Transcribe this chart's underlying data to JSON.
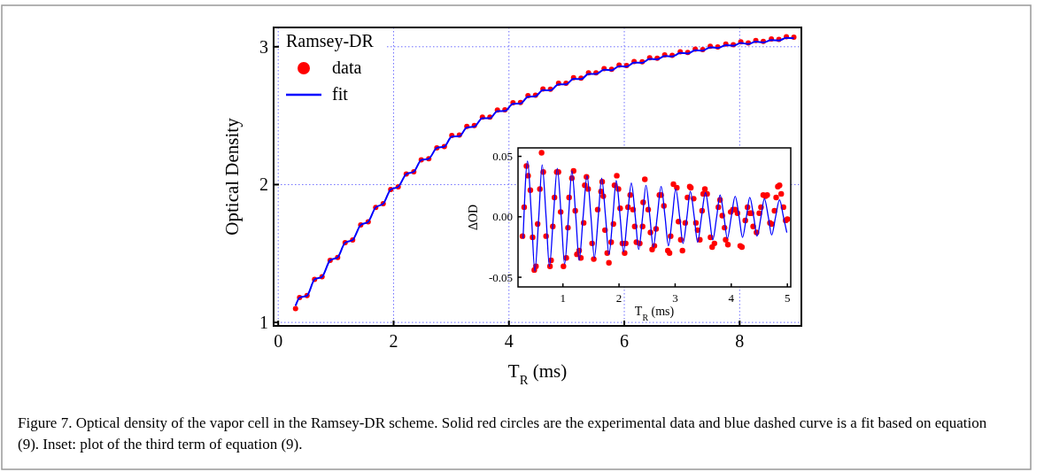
{
  "chart_data": [
    {
      "type": "scatter",
      "xlabel": "T$_{R}$ (ms)",
      "ylabel": "Optical Density",
      "legend_title": "Ramsey-DR",
      "legend": "top left",
      "grid": true,
      "xlim": [
        -0.08,
        9.07
      ],
      "ylim": [
        0.975,
        3.14
      ],
      "xticks": [
        0,
        2,
        4,
        6,
        8
      ],
      "yticks": [
        1,
        2,
        3
      ],
      "annotations": [
        "Figure 7. Optical density of the vapor cell in the Ramsey-DR scheme. Solid red circles are the experimental data and blue dashed curve is a fit based on equation (9). Inset: plot of the third term of equation (9)."
      ],
      "series": [
        {
          "name": "data",
          "type": "scatter",
          "marker": "circle",
          "color": "#ff0000",
          "x": [
            0.3,
            0.37,
            0.5,
            0.63,
            0.76,
            0.9,
            1.03,
            1.16,
            1.29,
            1.43,
            1.56,
            1.69,
            1.82,
            1.95,
            2.08,
            2.22,
            2.35,
            2.48,
            2.61,
            2.75,
            2.88,
            3.01,
            3.14,
            3.27,
            3.4,
            3.54,
            3.67,
            3.8,
            3.93,
            4.07,
            4.2,
            4.33,
            4.46,
            4.59,
            4.72,
            4.86,
            4.99,
            5.12,
            5.25,
            5.38,
            5.51,
            5.65,
            5.78,
            5.91,
            6.04,
            6.17,
            6.31,
            6.44,
            6.57,
            6.7,
            6.83,
            6.97,
            7.1,
            7.23,
            7.36,
            7.49,
            7.62,
            7.76,
            7.89,
            8.02,
            8.15,
            8.28,
            8.41,
            8.55,
            8.68,
            8.81,
            8.94
          ],
          "values": [
            1.1,
            1.18,
            1.195,
            1.312,
            1.331,
            1.451,
            1.472,
            1.579,
            1.598,
            1.707,
            1.73,
            1.835,
            1.861,
            1.964,
            1.984,
            2.076,
            2.093,
            2.179,
            2.188,
            2.266,
            2.276,
            2.356,
            2.359,
            2.422,
            2.428,
            2.49,
            2.489,
            2.541,
            2.542,
            2.594,
            2.596,
            2.645,
            2.649,
            2.693,
            2.692,
            2.736,
            2.736,
            2.775,
            2.773,
            2.81,
            2.81,
            2.842,
            2.837,
            2.867,
            2.864,
            2.893,
            2.891,
            2.92,
            2.917,
            2.941,
            2.937,
            2.963,
            2.959,
            2.983,
            2.98,
            3.004,
            2.999,
            3.02,
            3.015,
            3.035,
            3.028,
            3.045,
            3.039,
            3.056,
            3.054,
            3.072,
            3.069
          ]
        },
        {
          "name": "fit",
          "type": "line",
          "color": "#0000ff",
          "x": [
            0.3,
            0.37,
            0.5,
            0.63,
            0.76,
            0.9,
            1.03,
            1.16,
            1.29,
            1.43,
            1.56,
            1.69,
            1.82,
            1.95,
            2.08,
            2.22,
            2.35,
            2.48,
            2.61,
            2.75,
            2.88,
            3.01,
            3.14,
            3.27,
            3.4,
            3.54,
            3.67,
            3.8,
            3.93,
            4.07,
            4.2,
            4.33,
            4.46,
            4.59,
            4.72,
            4.86,
            4.99,
            5.12,
            5.25,
            5.38,
            5.51,
            5.65,
            5.78,
            5.91,
            6.04,
            6.17,
            6.31,
            6.44,
            6.57,
            6.7,
            6.83,
            6.97,
            7.1,
            7.23,
            7.36,
            7.49,
            7.62,
            7.76,
            7.89,
            8.02,
            8.15,
            8.28,
            8.41,
            8.55,
            8.68,
            8.81,
            8.94
          ],
          "values": [
            1.12,
            1.18,
            1.195,
            1.312,
            1.331,
            1.451,
            1.472,
            1.579,
            1.598,
            1.707,
            1.73,
            1.835,
            1.861,
            1.964,
            1.984,
            2.076,
            2.093,
            2.179,
            2.188,
            2.266,
            2.276,
            2.348,
            2.351,
            2.414,
            2.42,
            2.482,
            2.481,
            2.533,
            2.534,
            2.586,
            2.588,
            2.637,
            2.641,
            2.685,
            2.684,
            2.728,
            2.728,
            2.767,
            2.765,
            2.802,
            2.802,
            2.834,
            2.829,
            2.859,
            2.856,
            2.885,
            2.883,
            2.912,
            2.909,
            2.933,
            2.929,
            2.955,
            2.951,
            2.975,
            2.972,
            2.996,
            2.991,
            3.012,
            3.007,
            3.027,
            3.02,
            3.037,
            3.031,
            3.048,
            3.046,
            3.064,
            3.061
          ]
        }
      ]
    },
    {
      "type": "scatter",
      "xlabel": "T$_{R}$ (ms)",
      "ylabel": "ΔOD",
      "xlim": [
        0.2,
        5.06
      ],
      "ylim": [
        -0.058,
        0.057
      ],
      "xticks": [
        1,
        2,
        3,
        4,
        5
      ],
      "yticks": [
        {
          "value": -0.05,
          "label": "-0.05"
        },
        {
          "value": 0,
          "label": "0.00"
        },
        {
          "value": 0.05,
          "label": "0.05"
        }
      ],
      "series": [
        {
          "type": "scatter",
          "marker": "circle",
          "color": "#ff0000",
          "x": [
            0.28,
            0.31,
            0.35,
            0.38,
            0.42,
            0.46,
            0.49,
            0.52,
            0.55,
            0.59,
            0.62,
            0.65,
            0.7,
            0.77,
            0.79,
            0.82,
            0.85,
            0.89,
            0.92,
            0.96,
            1.01,
            1.06,
            1.09,
            1.11,
            1.16,
            1.19,
            1.22,
            1.25,
            1.29,
            1.32,
            1.37,
            1.39,
            1.42,
            1.45,
            1.52,
            1.55,
            1.62,
            1.68,
            1.7,
            1.72,
            1.75,
            1.79,
            1.82,
            1.86,
            1.9,
            1.92,
            1.96,
            1.99,
            2.02,
            2.06,
            2.1,
            2.12,
            2.16,
            2.2,
            2.25,
            2.28,
            2.31,
            2.37,
            2.42,
            2.43,
            2.46,
            2.52,
            2.56,
            2.59,
            2.63,
            2.66,
            2.72,
            2.75,
            2.8,
            2.87,
            2.9,
            2.92,
            2.97,
            3.03,
            3.06,
            3.1,
            3.13,
            3.18,
            3.22,
            3.26,
            3.28,
            3.33,
            3.37,
            3.4,
            3.44,
            3.48,
            3.5,
            3.53,
            3.57,
            3.63,
            3.66,
            3.7,
            3.77,
            3.8,
            3.84,
            3.88,
            3.9,
            3.94,
            3.99,
            4.03,
            4.07,
            4.11,
            4.16,
            4.19,
            4.25,
            4.29,
            4.33,
            4.36,
            4.39,
            4.45,
            4.5,
            4.53,
            4.57,
            4.61,
            4.64,
            4.69,
            4.72,
            4.77,
            4.8,
            4.83,
            4.86,
            4.89,
            4.93,
            4.97,
            5.0
          ],
          "values": [
            -0.016,
            0.008,
            0.042,
            0.034,
            0.022,
            -0.017,
            -0.044,
            -0.041,
            -0.006,
            0.023,
            0.053,
            0.037,
            -0.016,
            -0.041,
            -0.036,
            -0.008,
            0.016,
            0.037,
            0.037,
            0.004,
            -0.041,
            -0.034,
            -0.009,
            0.016,
            0.032,
            0.038,
            0.005,
            -0.031,
            -0.028,
            -0.034,
            -0.005,
            0.026,
            0.033,
            0.023,
            -0.022,
            -0.035,
            0.006,
            0.021,
            0.029,
            0.017,
            -0.011,
            -0.03,
            -0.038,
            -0.021,
            -0.006,
            0.026,
            0.034,
            0.023,
            0.007,
            -0.022,
            -0.03,
            -0.022,
            0.008,
            0.018,
            0.006,
            -0.008,
            -0.021,
            -0.022,
            -0.008,
            0.012,
            0.031,
            0.006,
            -0.013,
            -0.027,
            -0.024,
            -0.01,
            0.018,
            0.018,
            0.009,
            -0.028,
            -0.03,
            -0.016,
            0.027,
            0.024,
            -0.004,
            -0.019,
            -0.028,
            -0.005,
            0.016,
            0.025,
            0.024,
            0.015,
            -0.005,
            -0.011,
            -0.019,
            0.005,
            0.019,
            0.023,
            0.019,
            -0.017,
            -0.025,
            -0.022,
            0.008,
            0.014,
            0.001,
            -0.009,
            -0.019,
            -0.023,
            0.004,
            0.006,
            0.006,
            0.003,
            -0.024,
            -0.025,
            -0.003,
            0.008,
            0.003,
            0.003,
            -0.008,
            -0.013,
            0.003,
            0.008,
            0.018,
            0.017,
            0.018,
            -0.005,
            -0.006,
            0.005,
            0.016,
            0.025,
            0.026,
            0.019,
            0.008,
            -0.003,
            -0.002
          ]
        },
        {
          "type": "line",
          "color": "#0000ff",
          "x": [
            0.29,
            0.37,
            0.44,
            0.5,
            0.57,
            0.63,
            0.7,
            0.76,
            0.83,
            0.9,
            0.97,
            1.03,
            1.1,
            1.16,
            1.23,
            1.29,
            1.36,
            1.43,
            1.5,
            1.56,
            1.63,
            1.69,
            1.76,
            1.82,
            1.89,
            1.95,
            2.02,
            2.08,
            2.15,
            2.22,
            2.29,
            2.35,
            2.42,
            2.48,
            2.55,
            2.61,
            2.68,
            2.75,
            2.82,
            2.88,
            2.95,
            3.01,
            3.08,
            3.14,
            3.21,
            3.27,
            3.34,
            3.4,
            3.47,
            3.54,
            3.61,
            3.67,
            3.74,
            3.8,
            3.87,
            3.93,
            4.0,
            4.07,
            4.14,
            4.2,
            4.27,
            4.33,
            4.4,
            4.46,
            4.53,
            4.59,
            4.66,
            4.72,
            4.79,
            4.86,
            4.93,
            4.99
          ],
          "values": [
            -0.018,
            0.046,
            0,
            -0.045,
            0,
            0.043,
            0,
            -0.041,
            0,
            0.04,
            0,
            -0.039,
            0,
            0.038,
            0,
            -0.036,
            0,
            0.034,
            0,
            -0.034,
            0,
            0.032,
            0,
            -0.031,
            0,
            0.03,
            0,
            -0.029,
            0,
            0.028,
            0,
            -0.027,
            0,
            0.026,
            0,
            -0.025,
            0,
            0.025,
            0,
            -0.024,
            0,
            0.023,
            0,
            -0.022,
            0,
            0.021,
            0,
            -0.021,
            0,
            0.02,
            0,
            -0.019,
            0,
            0.018,
            0,
            -0.018,
            0,
            0.017,
            0,
            -0.017,
            0,
            0.016,
            0,
            -0.016,
            0,
            0.015,
            0,
            -0.015,
            0,
            0.014,
            0,
            -0.013
          ]
        }
      ]
    }
  ]
}
